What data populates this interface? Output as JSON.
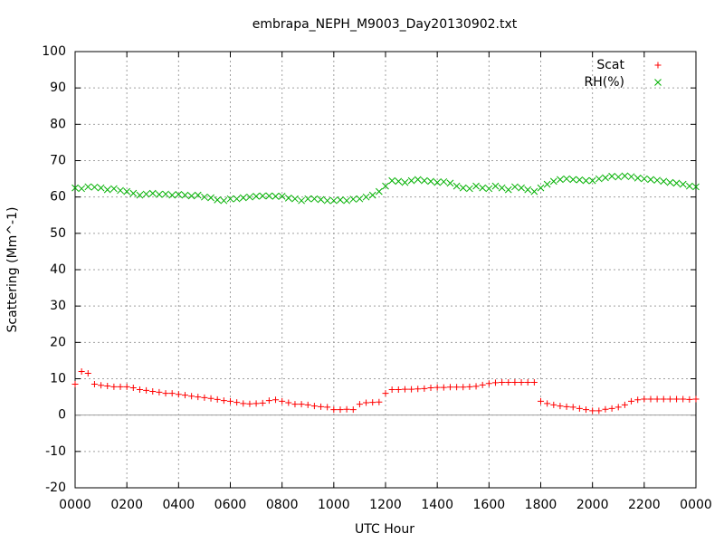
{
  "chart_data": {
    "type": "scatter",
    "title": "embrapa_NEPH_M9003_Day20130902.txt",
    "x_label": "UTC Hour",
    "y_label": "Scattering (Mm^-1)",
    "x": [
      0,
      0.25,
      0.5,
      0.75,
      1,
      1.25,
      1.5,
      1.75,
      2,
      2.25,
      2.5,
      2.75,
      3,
      3.25,
      3.5,
      3.75,
      4,
      4.25,
      4.5,
      4.75,
      5,
      5.25,
      5.5,
      5.75,
      6,
      6.25,
      6.5,
      6.75,
      7,
      7.25,
      7.5,
      7.75,
      8,
      8.25,
      8.5,
      8.75,
      9,
      9.25,
      9.5,
      9.75,
      10,
      10.25,
      10.5,
      10.75,
      11,
      11.25,
      11.5,
      11.75,
      12,
      12.25,
      12.5,
      12.75,
      13,
      13.25,
      13.5,
      13.75,
      14,
      14.25,
      14.5,
      14.75,
      15,
      15.25,
      15.5,
      15.75,
      16,
      16.25,
      16.5,
      16.75,
      17,
      17.25,
      17.5,
      17.75,
      18,
      18.25,
      18.5,
      18.75,
      19,
      19.25,
      19.5,
      19.75,
      20,
      20.25,
      20.5,
      20.75,
      21,
      21.25,
      21.5,
      21.75,
      22,
      22.25,
      22.5,
      22.75,
      23,
      23.25,
      23.5,
      23.75,
      24
    ],
    "series": [
      {
        "name": "Scat",
        "color": "#ff0000",
        "marker": "plus",
        "values": [
          8.5,
          12,
          11.5,
          8.5,
          8.2,
          8,
          7.8,
          7.8,
          7.8,
          7.5,
          7,
          6.8,
          6.5,
          6.3,
          6,
          6,
          5.7,
          5.5,
          5.2,
          5,
          4.8,
          4.6,
          4.3,
          4,
          3.8,
          3.5,
          3.2,
          3.1,
          3.2,
          3.3,
          4,
          4.2,
          3.8,
          3.4,
          3,
          3,
          2.8,
          2.5,
          2.3,
          2.2,
          1.5,
          1.5,
          1.6,
          1.5,
          3,
          3.4,
          3.5,
          3.6,
          6,
          7,
          7,
          7.1,
          7.1,
          7.2,
          7.3,
          7.5,
          7.6,
          7.6,
          7.7,
          7.7,
          7.7,
          7.8,
          7.9,
          8.3,
          8.7,
          8.9,
          9,
          9,
          9,
          9,
          9,
          9,
          3.8,
          3.2,
          2.8,
          2.5,
          2.3,
          2.2,
          1.8,
          1.5,
          1.2,
          1.2,
          1.6,
          1.8,
          2.2,
          2.8,
          3.8,
          4.2,
          4.4,
          4.4,
          4.4,
          4.4,
          4.4,
          4.4,
          4.4,
          4.3,
          4.4
        ]
      },
      {
        "name": "RH(%)",
        "color": "#00b000",
        "marker": "cross",
        "values": [
          62.5,
          62.3,
          62.8,
          62.7,
          62.5,
          62,
          62.3,
          61.8,
          61.5,
          61,
          60.5,
          60.8,
          61,
          60.7,
          60.8,
          60.5,
          60.7,
          60.5,
          60.3,
          60.5,
          60,
          59.8,
          59.2,
          59,
          59.5,
          59.5,
          59.8,
          60,
          60.2,
          60.3,
          60.3,
          60.2,
          60.2,
          59.7,
          59.5,
          59,
          59.5,
          59.5,
          59.3,
          59,
          59,
          59.2,
          59,
          59.4,
          59.5,
          60,
          60.5,
          61.5,
          63,
          64.5,
          64.3,
          64,
          64.5,
          64.8,
          64.5,
          64.3,
          64,
          64.2,
          63.8,
          63,
          62.5,
          62.3,
          63,
          62.5,
          62.3,
          63,
          62.5,
          62,
          62.8,
          62.5,
          62,
          61.5,
          62.5,
          63.5,
          64.3,
          64.8,
          65,
          64.8,
          64.7,
          64.5,
          64.5,
          65,
          65.3,
          65.7,
          65.5,
          65.8,
          65.6,
          65.2,
          65,
          64.8,
          64.6,
          64.3,
          64,
          63.8,
          63.5,
          63,
          62.8
        ]
      }
    ],
    "xlim": [
      0,
      24
    ],
    "xticks": [
      {
        "value": 0,
        "label": "0000"
      },
      {
        "value": 2,
        "label": "0200"
      },
      {
        "value": 4,
        "label": "0400"
      },
      {
        "value": 6,
        "label": "0600"
      },
      {
        "value": 8,
        "label": "0800"
      },
      {
        "value": 10,
        "label": "1000"
      },
      {
        "value": 12,
        "label": "1200"
      },
      {
        "value": 14,
        "label": "1400"
      },
      {
        "value": 16,
        "label": "1600"
      },
      {
        "value": 18,
        "label": "1800"
      },
      {
        "value": 20,
        "label": "2000"
      },
      {
        "value": 22,
        "label": "2200"
      },
      {
        "value": 24,
        "label": "0000"
      }
    ],
    "ylim": [
      -20,
      100
    ],
    "yticks": [
      -20,
      -10,
      0,
      10,
      20,
      30,
      40,
      50,
      60,
      70,
      80,
      90,
      100
    ],
    "grid": true,
    "zero_axis": true,
    "legend": "top right"
  }
}
